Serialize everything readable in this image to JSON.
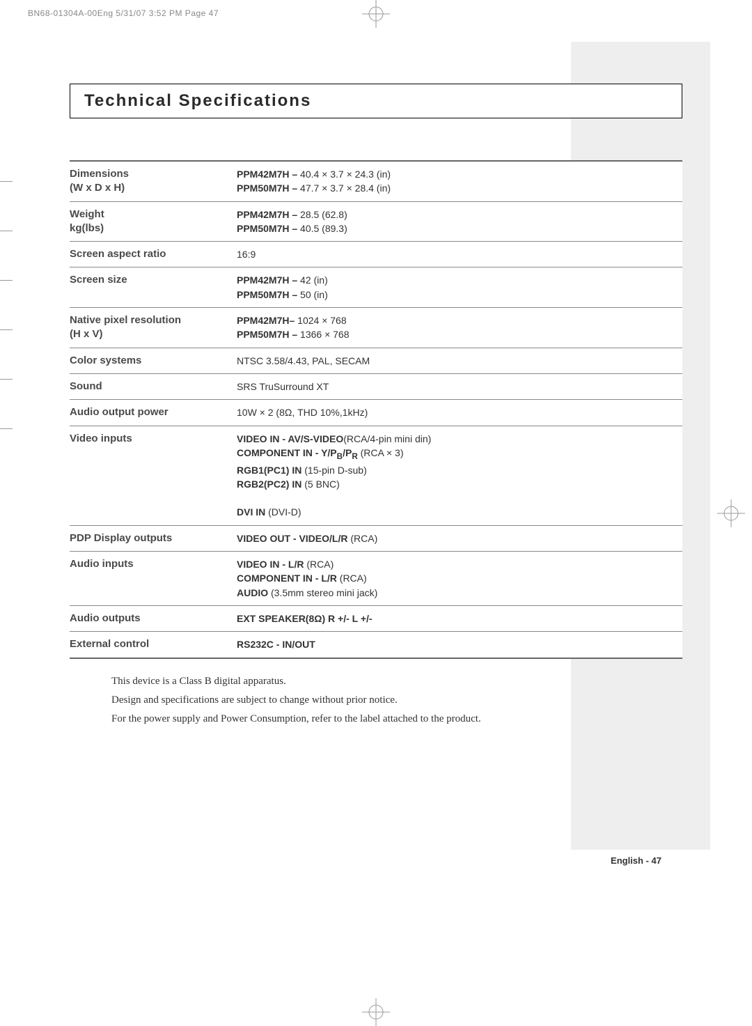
{
  "header": {
    "print_line": "BN68-01304A-00Eng  5/31/07  3:52 PM  Page 47"
  },
  "title": "Technical Specifications",
  "rows": [
    {
      "label": "Dimensions\n(W x D x H)",
      "value": "<b>PPM42M7H –</b> 40.4 × 3.7 × 24.3 (in)\n<b>PPM50M7H –</b> 47.7 × 3.7 × 28.4 (in)"
    },
    {
      "label": "Weight\nkg(lbs)",
      "value": "<b>PPM42M7H –</b> 28.5 (62.8)\n<b>PPM50M7H –</b> 40.5 (89.3)"
    },
    {
      "label": "Screen aspect ratio",
      "value": "16:9"
    },
    {
      "label": "Screen size",
      "value": "<b>PPM42M7H –</b> 42 (in)\n<b>PPM50M7H –</b> 50 (in)"
    },
    {
      "label": "Native pixel resolution\n(H x V)",
      "value": "<b>PPM42M7H–</b> 1024 × 768\n<b>PPM50M7H –</b> 1366 × 768"
    },
    {
      "label": "Color systems",
      "value": "NTSC 3.58/4.43, PAL, SECAM"
    },
    {
      "label": "Sound",
      "value": "SRS TruSurround XT"
    },
    {
      "label": "Audio output power",
      "value": "10W × 2 (8Ω, THD 10%,1kHz)"
    },
    {
      "label": "Video inputs",
      "value": "<b>VIDEO IN - AV/S-VIDEO</b>(RCA/4-pin mini din)\n<b>COMPONENT IN - Y/P<sub>B</sub>/P<sub>R</sub></b> (RCA × 3)\n<b>RGB1(PC1) IN</b> (15-pin D-sub)\n<b>RGB2(PC2) IN</b> (5 BNC)\n\n<b>DVI IN</b> (DVI-D)"
    },
    {
      "label": "PDP Display outputs",
      "value": "<b>VIDEO OUT - VIDEO/L/R</b> (RCA)"
    },
    {
      "label": "Audio inputs",
      "value": "<b>VIDEO IN - L/R</b> (RCA)\n<b>COMPONENT IN - L/R</b> (RCA)\n<b>AUDIO</b> (3.5mm stereo mini jack)"
    },
    {
      "label": "Audio outputs",
      "value": "<b>EXT SPEAKER(8Ω) R +/- L +/-</b>"
    },
    {
      "label": "External control",
      "value": "<b>RS232C - IN/OUT</b>"
    }
  ],
  "footnotes": [
    "This device is a Class B digital apparatus.",
    "Design and specifications are subject to change without prior notice.",
    "For the power supply and Power Consumption, refer to the label attached to the product."
  ],
  "footer": "English - 47",
  "colors": {
    "sidebar_grey": "#eeeeee",
    "text_grey": "#4a4a4a",
    "rule": "#888888"
  }
}
